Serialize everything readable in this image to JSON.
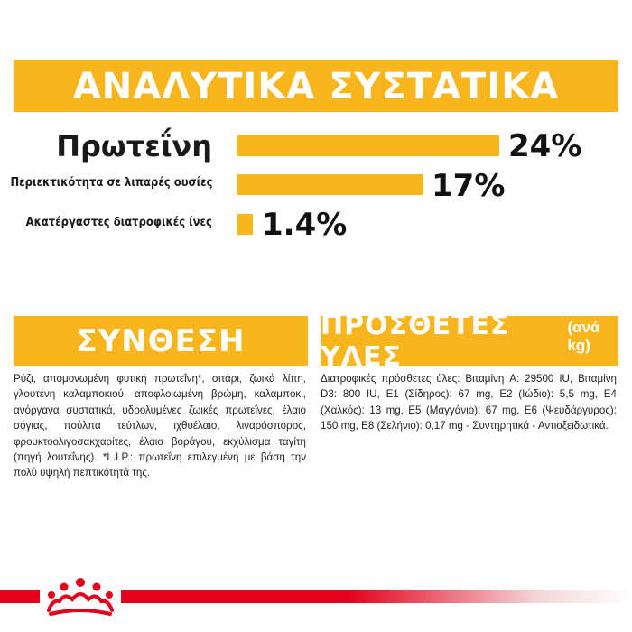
{
  "analysis": {
    "title": "ΑΝΑΛΥΤΙΚΑ ΣΥΣΤΑΤΙΚΑ",
    "rows": [
      {
        "label": "Πρωτεΐνη",
        "value": "24%",
        "fraction": 1.0
      },
      {
        "label": "Περιεκτικότητα σε λιπαρές ουσίες",
        "value": "17%",
        "fraction": 0.708
      },
      {
        "label": "Ακατέργαστες διατροφικές ίνες",
        "value": "1.4%",
        "fraction": 0.058
      }
    ]
  },
  "composition": {
    "title": "ΣΥΝΘΕΣΗ",
    "text": "Ρύζι, απομονωμένη φυτική πρωτεΐνη*, σιτάρι, ζωικά λίπη, γλουτένη καλαμποκιού, αποφλοιωμένη βρώμη, καλαμπόκι, ανόργανα συστατικά, υδρολυμένες ζωικές πρωτεΐνες, έλαιο σόγιας, πούλπα τεύτλων, ιχθυέλαιο, λιναρόσπορος, φρουκτοολιγοσακχαρίτες, έλαιο βοράγου, εκχύλισμα ταγίτη (πηγή λουτεΐνης). *L.I.P.: πρωτεΐνη επιλεγμένη με βάση την πολύ υψηλή πεπτικότητά της."
  },
  "additives": {
    "title": "ΠΡΟΣΘΕΤΕΣ ΥΛΕΣ",
    "subtitle": "(ανά kg)",
    "text": "Διατροφικές πρόσθετες ύλες: Βιταμίνη A: 29500 IU, Βιταμίνη D3: 800 IU, E1 (Σίδηρος): 67 mg, E2 (Ιώδιο): 5,5 mg, E4 (Χαλκός): 13 mg, E5 (Μαγγάνιο): 67 mg, E6 (Ψευδάργυρος): 150 mg, E8 (Σελήνιο): 0,17 mg - Συντηρητικά - Αντιοξειδωτικά."
  },
  "colors": {
    "accent": "#f9b51d",
    "brand_red": "#e2001a"
  },
  "logo": {
    "icon": "royal-canin-crown-icon"
  }
}
